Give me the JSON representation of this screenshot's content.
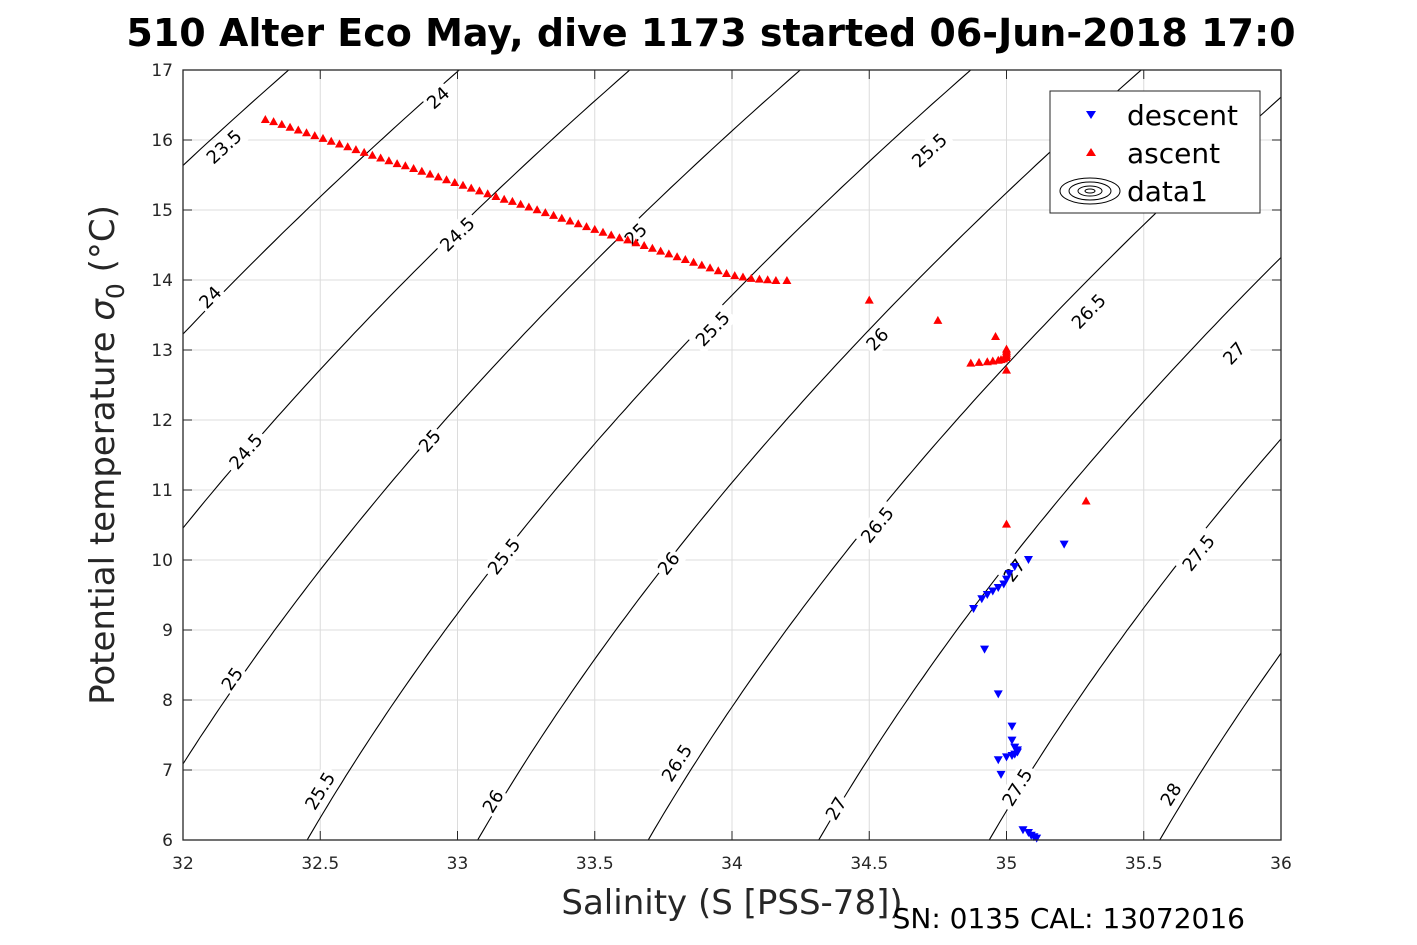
{
  "title": "510 Alter Eco May, dive 1173 started 06-Jun-2018 17:0",
  "footer": "SN: 0135  CAL: 13072016",
  "chart_data": {
    "type": "scatter",
    "xlabel": "Salinity (S [PSS-78])",
    "ylabel": "Potential temperature σ 0 (°C)",
    "ylabel_main": "Potential temperature ",
    "ylabel_sigma": "σ",
    "ylabel_sub": "0",
    "ylabel_unit": " (°C)",
    "xlim": [
      32,
      36
    ],
    "ylim": [
      6,
      17
    ],
    "x_ticks": [
      "32",
      "32.5",
      "33",
      "33.5",
      "34",
      "34.5",
      "35",
      "35.5",
      "36"
    ],
    "y_ticks": [
      "6",
      "7",
      "8",
      "9",
      "10",
      "11",
      "12",
      "13",
      "14",
      "15",
      "16",
      "17"
    ],
    "grid": true,
    "legend_position": "top-right",
    "legend": [
      {
        "label": "descent",
        "marker": "triangle-down",
        "color": "#0000ff"
      },
      {
        "label": "ascent",
        "marker": "triangle-up",
        "color": "#ff0000"
      },
      {
        "label": "data1",
        "marker": "contour-icon",
        "color": "#000000"
      }
    ],
    "contours": {
      "levels": [
        23.5,
        24,
        24.5,
        25,
        25.5,
        26,
        26.5,
        27,
        27.5,
        28
      ],
      "labels": [
        {
          "text": "23.5",
          "x": 32.15,
          "y": 15.9
        },
        {
          "text": "24",
          "x": 32.93,
          "y": 16.6
        },
        {
          "text": "24",
          "x": 32.1,
          "y": 13.75
        },
        {
          "text": "24.5",
          "x": 33.0,
          "y": 14.65
        },
        {
          "text": "24.5",
          "x": 32.23,
          "y": 11.55
        },
        {
          "text": "25",
          "x": 33.65,
          "y": 14.65
        },
        {
          "text": "25",
          "x": 32.9,
          "y": 11.7
        },
        {
          "text": "25",
          "x": 32.18,
          "y": 8.3
        },
        {
          "text": "25.5",
          "x": 34.72,
          "y": 15.85
        },
        {
          "text": "25.5",
          "x": 33.93,
          "y": 13.3
        },
        {
          "text": "25.5",
          "x": 33.17,
          "y": 10.05
        },
        {
          "text": "25.5",
          "x": 32.5,
          "y": 6.7
        },
        {
          "text": "26",
          "x": 34.53,
          "y": 13.15
        },
        {
          "text": "26",
          "x": 33.77,
          "y": 9.95
        },
        {
          "text": "26",
          "x": 33.13,
          "y": 6.55
        },
        {
          "text": "26.5",
          "x": 35.3,
          "y": 13.55
        },
        {
          "text": "26.5",
          "x": 34.53,
          "y": 10.5
        },
        {
          "text": "26.5",
          "x": 33.8,
          "y": 7.1
        },
        {
          "text": "27",
          "x": 35.83,
          "y": 12.95
        },
        {
          "text": "27",
          "x": 35.03,
          "y": 9.85
        },
        {
          "text": "27",
          "x": 34.38,
          "y": 6.45
        },
        {
          "text": "27.5",
          "x": 35.7,
          "y": 10.1
        },
        {
          "text": "27.5",
          "x": 35.04,
          "y": 6.75
        },
        {
          "text": "28",
          "x": 35.6,
          "y": 6.65
        }
      ]
    },
    "series": [
      {
        "name": "descent",
        "marker": "triangle-down",
        "color": "#0000ff",
        "points": [
          [
            35.21,
            10.22
          ],
          [
            35.08,
            10.0
          ],
          [
            35.03,
            9.9
          ],
          [
            35.01,
            9.8
          ],
          [
            35.0,
            9.72
          ],
          [
            34.99,
            9.65
          ],
          [
            34.97,
            9.6
          ],
          [
            34.95,
            9.55
          ],
          [
            34.93,
            9.5
          ],
          [
            34.91,
            9.44
          ],
          [
            34.88,
            9.3
          ],
          [
            34.92,
            8.72
          ],
          [
            34.97,
            8.08
          ],
          [
            35.02,
            7.62
          ],
          [
            35.02,
            7.42
          ],
          [
            35.03,
            7.32
          ],
          [
            35.04,
            7.28
          ],
          [
            35.04,
            7.25
          ],
          [
            35.03,
            7.22
          ],
          [
            35.02,
            7.2
          ],
          [
            35.0,
            7.18
          ],
          [
            34.97,
            7.14
          ],
          [
            34.98,
            6.93
          ],
          [
            35.06,
            6.14
          ],
          [
            35.08,
            6.1
          ],
          [
            35.09,
            6.06
          ],
          [
            35.1,
            6.04
          ],
          [
            35.11,
            6.02
          ]
        ]
      },
      {
        "name": "ascent",
        "marker": "triangle-up",
        "color": "#ff0000",
        "points": [
          [
            32.3,
            16.3
          ],
          [
            32.33,
            16.27
          ],
          [
            32.36,
            16.23
          ],
          [
            32.39,
            16.19
          ],
          [
            32.42,
            16.15
          ],
          [
            32.45,
            16.11
          ],
          [
            32.48,
            16.07
          ],
          [
            32.51,
            16.03
          ],
          [
            32.54,
            15.99
          ],
          [
            32.57,
            15.95
          ],
          [
            32.6,
            15.91
          ],
          [
            32.63,
            15.87
          ],
          [
            32.66,
            15.83
          ],
          [
            32.69,
            15.79
          ],
          [
            32.72,
            15.75
          ],
          [
            32.75,
            15.71
          ],
          [
            32.78,
            15.67
          ],
          [
            32.81,
            15.64
          ],
          [
            32.84,
            15.6
          ],
          [
            32.87,
            15.56
          ],
          [
            32.9,
            15.52
          ],
          [
            32.93,
            15.48
          ],
          [
            32.96,
            15.44
          ],
          [
            32.99,
            15.4
          ],
          [
            33.02,
            15.36
          ],
          [
            33.05,
            15.32
          ],
          [
            33.08,
            15.28
          ],
          [
            33.11,
            15.24
          ],
          [
            33.14,
            15.2
          ],
          [
            33.17,
            15.16
          ],
          [
            33.2,
            15.13
          ],
          [
            33.23,
            15.09
          ],
          [
            33.26,
            15.05
          ],
          [
            33.29,
            15.01
          ],
          [
            33.32,
            14.97
          ],
          [
            33.35,
            14.93
          ],
          [
            33.38,
            14.89
          ],
          [
            33.41,
            14.85
          ],
          [
            33.44,
            14.81
          ],
          [
            33.47,
            14.77
          ],
          [
            33.5,
            14.73
          ],
          [
            33.53,
            14.69
          ],
          [
            33.56,
            14.65
          ],
          [
            33.59,
            14.61
          ],
          [
            33.62,
            14.58
          ],
          [
            33.65,
            14.54
          ],
          [
            33.68,
            14.5
          ],
          [
            33.71,
            14.46
          ],
          [
            33.74,
            14.42
          ],
          [
            33.77,
            14.38
          ],
          [
            33.8,
            14.34
          ],
          [
            33.83,
            14.3
          ],
          [
            33.86,
            14.26
          ],
          [
            33.89,
            14.22
          ],
          [
            33.92,
            14.18
          ],
          [
            33.95,
            14.14
          ],
          [
            33.98,
            14.1
          ],
          [
            34.01,
            14.07
          ],
          [
            34.04,
            14.05
          ],
          [
            34.07,
            14.03
          ],
          [
            34.1,
            14.02
          ],
          [
            34.13,
            14.01
          ],
          [
            34.16,
            14.0
          ],
          [
            34.2,
            14.0
          ],
          [
            34.5,
            13.72
          ],
          [
            34.75,
            13.43
          ],
          [
            34.96,
            13.2
          ],
          [
            34.87,
            12.82
          ],
          [
            34.9,
            12.83
          ],
          [
            34.93,
            12.84
          ],
          [
            34.95,
            12.85
          ],
          [
            34.97,
            12.86
          ],
          [
            34.98,
            12.87
          ],
          [
            34.99,
            12.88
          ],
          [
            35.0,
            12.9
          ],
          [
            35.0,
            12.93
          ],
          [
            35.0,
            12.96
          ],
          [
            35.0,
            12.99
          ],
          [
            35.0,
            13.02
          ],
          [
            35.0,
            12.72
          ],
          [
            35.0,
            10.52
          ],
          [
            35.29,
            10.85
          ]
        ]
      }
    ]
  }
}
